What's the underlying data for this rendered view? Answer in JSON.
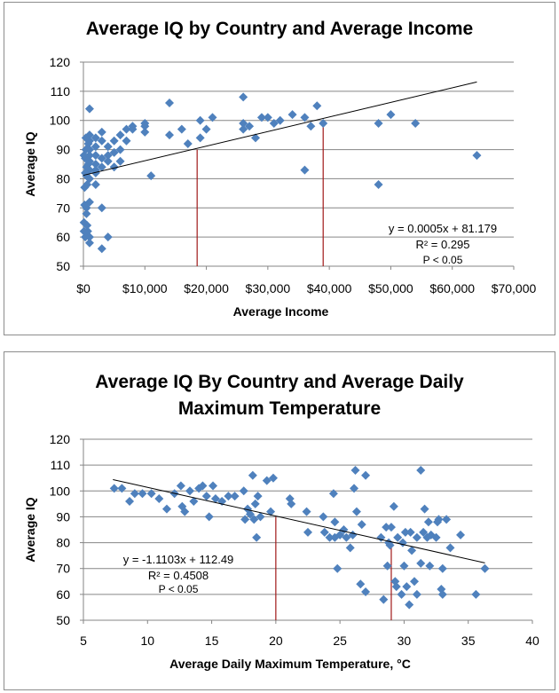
{
  "chart_data": [
    {
      "type": "scatter",
      "title": "Average IQ by Country and Average Income",
      "xlabel": "Average Income",
      "ylabel": "Average IQ",
      "xlim": [
        0,
        70000
      ],
      "ylim": [
        50,
        120
      ],
      "xticks": [
        0,
        10000,
        20000,
        30000,
        40000,
        50000,
        60000,
        70000
      ],
      "xtick_labels": [
        "$0",
        "$10,000",
        "$20,000",
        "$30,000",
        "$40,000",
        "$50,000",
        "$60,000",
        "$70,000"
      ],
      "yticks": [
        50,
        60,
        70,
        80,
        90,
        100,
        110,
        120
      ],
      "ytick_labels": [
        "50",
        "60",
        "70",
        "80",
        "90",
        "100",
        "110",
        "120"
      ],
      "grid": "horizontal",
      "marker_color": "#4f81bd",
      "trendline": {
        "slope": 0.0005,
        "intercept": 81.179,
        "x_range": [
          0,
          64000
        ]
      },
      "annotations": [
        "y = 0.0005x + 81.179",
        "R² = 0.295",
        "P < 0.05"
      ],
      "ref_lines": [
        {
          "x": 18500,
          "y": 90
        },
        {
          "x": 39000,
          "y": 100
        }
      ],
      "ref_line_color": "#a01818",
      "points": [
        [
          64000,
          88
        ],
        [
          54000,
          99
        ],
        [
          50000,
          102
        ],
        [
          48000,
          78
        ],
        [
          48000,
          99
        ],
        [
          39000,
          99
        ],
        [
          37000,
          98
        ],
        [
          36000,
          83
        ],
        [
          36000,
          101
        ],
        [
          34000,
          102
        ],
        [
          38000,
          105
        ],
        [
          32000,
          100
        ],
        [
          30000,
          101
        ],
        [
          31000,
          99
        ],
        [
          29000,
          101
        ],
        [
          28000,
          94
        ],
        [
          27000,
          98
        ],
        [
          26000,
          108
        ],
        [
          26000,
          97
        ],
        [
          26000,
          99
        ],
        [
          21000,
          101
        ],
        [
          19000,
          100
        ],
        [
          19000,
          94
        ],
        [
          20000,
          97
        ],
        [
          17000,
          92
        ],
        [
          16000,
          97
        ],
        [
          14000,
          106
        ],
        [
          14000,
          95
        ],
        [
          10000,
          98
        ],
        [
          10000,
          99
        ],
        [
          10000,
          96
        ],
        [
          11000,
          81
        ],
        [
          8000,
          98
        ],
        [
          8000,
          97
        ],
        [
          7000,
          93
        ],
        [
          7000,
          97
        ],
        [
          6000,
          86
        ],
        [
          6000,
          90
        ],
        [
          6000,
          95
        ],
        [
          5000,
          84
        ],
        [
          5000,
          89
        ],
        [
          5000,
          93
        ],
        [
          4000,
          86
        ],
        [
          4000,
          88
        ],
        [
          4000,
          91
        ],
        [
          3000,
          84
        ],
        [
          3000,
          87
        ],
        [
          3000,
          96
        ],
        [
          3000,
          93
        ],
        [
          3000,
          70
        ],
        [
          3000,
          56
        ],
        [
          4000,
          60
        ],
        [
          2000,
          82
        ],
        [
          2000,
          85
        ],
        [
          2000,
          88
        ],
        [
          2000,
          91
        ],
        [
          2000,
          94
        ],
        [
          2000,
          78
        ],
        [
          2000,
          83
        ],
        [
          1000,
          104
        ],
        [
          1000,
          95
        ],
        [
          1000,
          93
        ],
        [
          1000,
          90
        ],
        [
          1000,
          88
        ],
        [
          1000,
          86
        ],
        [
          1000,
          83
        ],
        [
          1000,
          80
        ],
        [
          1000,
          72
        ],
        [
          1000,
          60
        ],
        [
          1000,
          58
        ],
        [
          800,
          92
        ],
        [
          800,
          85
        ],
        [
          700,
          62
        ],
        [
          600,
          64
        ],
        [
          600,
          78
        ],
        [
          500,
          70
        ],
        [
          500,
          68
        ],
        [
          500,
          84
        ],
        [
          500,
          81
        ],
        [
          400,
          94
        ],
        [
          400,
          90
        ],
        [
          300,
          87
        ],
        [
          300,
          82
        ],
        [
          300,
          60
        ],
        [
          200,
          77
        ],
        [
          200,
          71
        ],
        [
          100,
          65
        ],
        [
          100,
          62
        ],
        [
          100,
          88
        ]
      ]
    },
    {
      "type": "scatter",
      "title": "Average IQ By Country and Average Daily Maximum Temperature",
      "title_lines": [
        "Average IQ By Country and Average Daily",
        "Maximum Temperature"
      ],
      "xlabel": "Average Daily Maximum Temperature, °C",
      "ylabel": "Average IQ",
      "xlim": [
        5,
        40
      ],
      "ylim": [
        50,
        120
      ],
      "xticks": [
        5,
        10,
        15,
        20,
        25,
        30,
        35,
        40
      ],
      "xtick_labels": [
        "5",
        "10",
        "15",
        "20",
        "25",
        "30",
        "35",
        "40"
      ],
      "yticks": [
        50,
        60,
        70,
        80,
        90,
        100,
        110,
        120
      ],
      "ytick_labels": [
        "50",
        "60",
        "70",
        "80",
        "90",
        "100",
        "110",
        "120"
      ],
      "grid": "horizontal",
      "marker_color": "#4f81bd",
      "trendline": {
        "slope": -1.1103,
        "intercept": 112.49,
        "x_range": [
          7.3,
          36.3
        ]
      },
      "annotations": [
        "y = -1.1103x + 112.49",
        "R² = 0.4508",
        "P < 0.05"
      ],
      "ref_lines": [
        {
          "x": 20,
          "y": 90
        },
        {
          "x": 29,
          "y": 80
        }
      ],
      "ref_line_color": "#a01818",
      "points": [
        [
          7.4,
          101
        ],
        [
          8.0,
          101
        ],
        [
          8.6,
          96
        ],
        [
          9.0,
          99
        ],
        [
          9.6,
          99
        ],
        [
          10.3,
          99
        ],
        [
          10.9,
          97
        ],
        [
          11.5,
          93
        ],
        [
          12.1,
          99
        ],
        [
          12.6,
          102
        ],
        [
          12.7,
          94
        ],
        [
          12.9,
          92
        ],
        [
          13.3,
          100
        ],
        [
          13.6,
          96
        ],
        [
          14.0,
          101
        ],
        [
          14.3,
          102
        ],
        [
          14.6,
          98
        ],
        [
          14.8,
          90
        ],
        [
          15.1,
          102
        ],
        [
          15.3,
          97
        ],
        [
          15.8,
          96
        ],
        [
          16.3,
          98
        ],
        [
          16.8,
          98
        ],
        [
          17.5,
          100
        ],
        [
          17.6,
          89
        ],
        [
          17.8,
          93
        ],
        [
          18.0,
          91
        ],
        [
          18.2,
          106
        ],
        [
          18.3,
          89
        ],
        [
          18.4,
          95
        ],
        [
          18.5,
          82
        ],
        [
          18.6,
          98
        ],
        [
          18.8,
          90
        ],
        [
          19.3,
          104
        ],
        [
          19.6,
          92
        ],
        [
          19.8,
          105
        ],
        [
          21.1,
          97
        ],
        [
          21.2,
          95
        ],
        [
          22.4,
          92
        ],
        [
          22.5,
          84
        ],
        [
          23.7,
          90
        ],
        [
          23.8,
          84
        ],
        [
          24.2,
          82
        ],
        [
          24.5,
          99
        ],
        [
          24.6,
          88
        ],
        [
          24.6,
          82
        ],
        [
          24.8,
          70
        ],
        [
          25.0,
          83
        ],
        [
          25.3,
          85
        ],
        [
          25.5,
          82
        ],
        [
          25.8,
          78
        ],
        [
          26.0,
          83
        ],
        [
          26.1,
          101
        ],
        [
          26.2,
          108
        ],
        [
          26.3,
          92
        ],
        [
          26.6,
          64
        ],
        [
          26.7,
          87
        ],
        [
          27.0,
          61
        ],
        [
          27.0,
          106
        ],
        [
          28.2,
          82
        ],
        [
          28.4,
          58
        ],
        [
          28.6,
          86
        ],
        [
          28.7,
          71
        ],
        [
          28.8,
          80
        ],
        [
          28.9,
          79
        ],
        [
          29.0,
          86
        ],
        [
          29.2,
          94
        ],
        [
          29.3,
          65
        ],
        [
          29.4,
          63
        ],
        [
          29.5,
          82
        ],
        [
          29.8,
          60
        ],
        [
          29.9,
          80
        ],
        [
          30.0,
          71
        ],
        [
          30.1,
          84
        ],
        [
          30.2,
          63
        ],
        [
          30.4,
          56
        ],
        [
          30.5,
          84
        ],
        [
          30.6,
          77
        ],
        [
          30.8,
          65
        ],
        [
          31.0,
          82
        ],
        [
          31.0,
          60
        ],
        [
          31.3,
          72
        ],
        [
          31.3,
          108
        ],
        [
          31.5,
          84
        ],
        [
          31.6,
          93
        ],
        [
          31.8,
          82
        ],
        [
          31.9,
          88
        ],
        [
          32.0,
          71
        ],
        [
          32.1,
          83
        ],
        [
          32.5,
          82
        ],
        [
          32.6,
          88
        ],
        [
          32.7,
          89
        ],
        [
          32.9,
          62
        ],
        [
          33.0,
          70
        ],
        [
          33.0,
          60
        ],
        [
          33.3,
          89
        ],
        [
          33.6,
          78
        ],
        [
          34.4,
          83
        ],
        [
          35.6,
          60
        ],
        [
          36.3,
          70
        ]
      ]
    }
  ]
}
